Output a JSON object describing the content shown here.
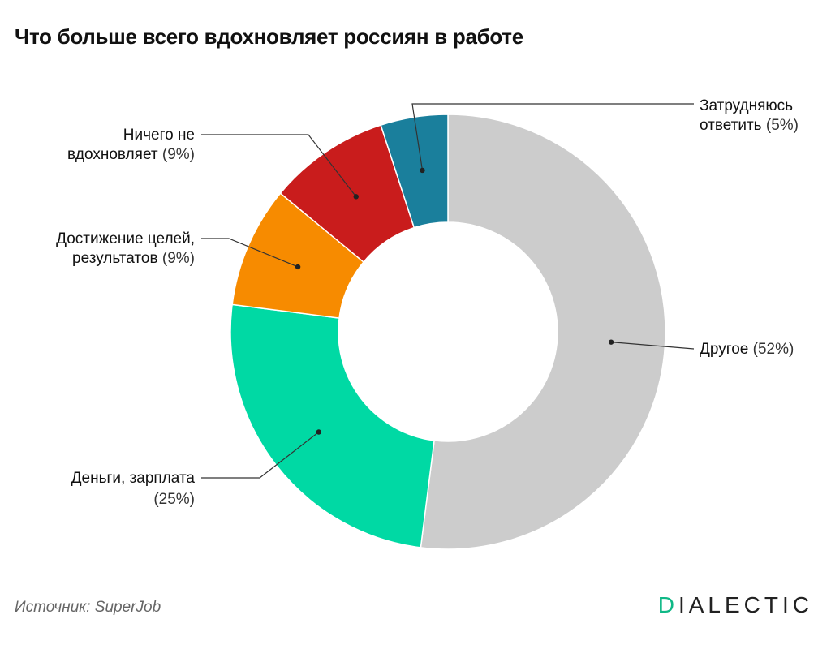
{
  "header": {
    "title": "Что больше всего вдохновляет россиян в работе"
  },
  "footer": {
    "source": "Источник: SuperJob",
    "logo_accent": "D",
    "logo_rest": "IALECTIC",
    "accent_color": "#0fb886"
  },
  "chart_data": {
    "type": "pie",
    "donut": true,
    "title": "Что больше всего вдохновляет россиян в работе",
    "slices": [
      {
        "label_lines": [
          "Другое"
        ],
        "pct_text": "(52%)",
        "value": 52,
        "color": "#cccccc"
      },
      {
        "label_lines": [
          "Деньги, зарплата"
        ],
        "pct_text": "(25%)",
        "value": 25,
        "color": "#00d9a4"
      },
      {
        "label_lines": [
          "Достижение целей,",
          "результатов"
        ],
        "pct_text": "(9%)",
        "value": 9,
        "color": "#f78b00"
      },
      {
        "label_lines": [
          "Ничего не",
          "вдохновляет"
        ],
        "pct_text": "(9%)",
        "value": 9,
        "color": "#c91c1c"
      },
      {
        "label_lines": [
          "Затрудняюсь",
          "ответить"
        ],
        "pct_text": "(5%)",
        "value": 5,
        "color": "#1a7f9c"
      }
    ]
  }
}
